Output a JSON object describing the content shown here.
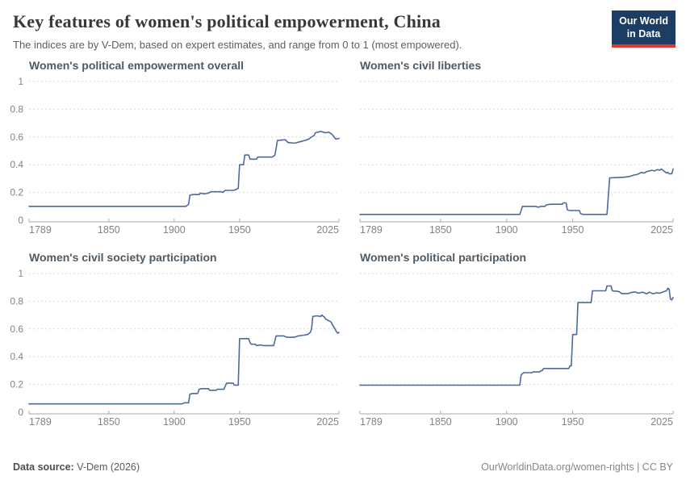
{
  "header": {
    "title": "Key features of women's political empowerment, China",
    "subtitle": "The indices are by V-Dem, based on expert estimates, and range from 0 to 1 (most empowered).",
    "logo": {
      "line1": "Our World",
      "line2": "in Data"
    }
  },
  "footer": {
    "source_label": "Data source:",
    "source_value": "V-Dem (2026)",
    "link": "OurWorldinData.org/women-rights",
    "separator": "|",
    "license": "CC BY"
  },
  "colors": {
    "line": "#4c6a9c",
    "grid": "#d9d9d9",
    "axis": "#a8a8a8",
    "tick_label": "#838383",
    "logo_bg": "#1d3d63",
    "logo_accent": "#dc3a2c"
  },
  "chart_data": [
    {
      "type": "line",
      "title": "Women's political empowerment overall",
      "entity": "China",
      "xlim": [
        1789,
        2026
      ],
      "ylim": [
        0,
        1
      ],
      "x_ticks": [
        1789,
        1850,
        1900,
        1950,
        2025
      ],
      "y_ticks": [
        0,
        0.2,
        0.4,
        0.6,
        0.8,
        1
      ],
      "grid": "horizontal-dashed",
      "show_y_labels": true,
      "points": [
        [
          1789,
          0.1
        ],
        [
          1909,
          0.1
        ],
        [
          1911,
          0.115
        ],
        [
          1912,
          0.18
        ],
        [
          1914,
          0.185
        ],
        [
          1919,
          0.185
        ],
        [
          1920,
          0.195
        ],
        [
          1923,
          0.19
        ],
        [
          1926,
          0.195
        ],
        [
          1928,
          0.205
        ],
        [
          1936,
          0.205
        ],
        [
          1937,
          0.2
        ],
        [
          1939,
          0.215
        ],
        [
          1945,
          0.215
        ],
        [
          1947,
          0.22
        ],
        [
          1949,
          0.23
        ],
        [
          1950,
          0.4
        ],
        [
          1953,
          0.4
        ],
        [
          1954,
          0.47
        ],
        [
          1957,
          0.47
        ],
        [
          1958,
          0.44
        ],
        [
          1963,
          0.44
        ],
        [
          1964,
          0.455
        ],
        [
          1975,
          0.455
        ],
        [
          1977,
          0.47
        ],
        [
          1978,
          0.52
        ],
        [
          1979,
          0.575
        ],
        [
          1985,
          0.58
        ],
        [
          1987,
          0.56
        ],
        [
          1992,
          0.555
        ],
        [
          1996,
          0.565
        ],
        [
          2000,
          0.575
        ],
        [
          2003,
          0.585
        ],
        [
          2005,
          0.6
        ],
        [
          2007,
          0.61
        ],
        [
          2008,
          0.63
        ],
        [
          2010,
          0.635
        ],
        [
          2012,
          0.64
        ],
        [
          2014,
          0.635
        ],
        [
          2016,
          0.63
        ],
        [
          2018,
          0.635
        ],
        [
          2020,
          0.625
        ],
        [
          2022,
          0.605
        ],
        [
          2023,
          0.59
        ],
        [
          2024,
          0.585
        ],
        [
          2026,
          0.59
        ]
      ]
    },
    {
      "type": "line",
      "title": "Women's civil liberties",
      "entity": "China",
      "xlim": [
        1789,
        2026
      ],
      "ylim": [
        0,
        1
      ],
      "x_ticks": [
        1789,
        1850,
        1900,
        1950,
        2025
      ],
      "y_ticks": [
        0,
        0.2,
        0.4,
        0.6,
        0.8,
        1
      ],
      "grid": "horizontal-dashed",
      "show_y_labels": false,
      "points": [
        [
          1789,
          0.042
        ],
        [
          1910,
          0.042
        ],
        [
          1912,
          0.1
        ],
        [
          1922,
          0.1
        ],
        [
          1924,
          0.093
        ],
        [
          1926,
          0.1
        ],
        [
          1929,
          0.1
        ],
        [
          1930,
          0.11
        ],
        [
          1933,
          0.115
        ],
        [
          1942,
          0.115
        ],
        [
          1943,
          0.125
        ],
        [
          1945,
          0.125
        ],
        [
          1946,
          0.075
        ],
        [
          1948,
          0.07
        ],
        [
          1955,
          0.07
        ],
        [
          1956,
          0.047
        ],
        [
          1958,
          0.042
        ],
        [
          1976,
          0.042
        ],
        [
          1978,
          0.305
        ],
        [
          1989,
          0.31
        ],
        [
          1993,
          0.315
        ],
        [
          1996,
          0.325
        ],
        [
          1999,
          0.33
        ],
        [
          2002,
          0.345
        ],
        [
          2004,
          0.34
        ],
        [
          2006,
          0.35
        ],
        [
          2008,
          0.355
        ],
        [
          2010,
          0.36
        ],
        [
          2012,
          0.355
        ],
        [
          2014,
          0.365
        ],
        [
          2016,
          0.36
        ],
        [
          2017,
          0.37
        ],
        [
          2019,
          0.355
        ],
        [
          2021,
          0.34
        ],
        [
          2022,
          0.345
        ],
        [
          2023,
          0.335
        ],
        [
          2025,
          0.335
        ],
        [
          2026,
          0.37
        ]
      ]
    },
    {
      "type": "line",
      "title": "Women's civil society participation",
      "entity": "China",
      "xlim": [
        1789,
        2026
      ],
      "ylim": [
        0,
        1
      ],
      "x_ticks": [
        1789,
        1850,
        1900,
        1950,
        2025
      ],
      "y_ticks": [
        0,
        0.2,
        0.4,
        0.6,
        0.8,
        1
      ],
      "grid": "horizontal-dashed",
      "show_y_labels": true,
      "points": [
        [
          1789,
          0.06
        ],
        [
          1906,
          0.06
        ],
        [
          1908,
          0.068
        ],
        [
          1911,
          0.068
        ],
        [
          1912,
          0.13
        ],
        [
          1914,
          0.135
        ],
        [
          1918,
          0.135
        ],
        [
          1919,
          0.165
        ],
        [
          1921,
          0.17
        ],
        [
          1926,
          0.17
        ],
        [
          1927,
          0.158
        ],
        [
          1932,
          0.158
        ],
        [
          1933,
          0.165
        ],
        [
          1938,
          0.165
        ],
        [
          1940,
          0.21
        ],
        [
          1945,
          0.21
        ],
        [
          1946,
          0.195
        ],
        [
          1949,
          0.195
        ],
        [
          1950,
          0.53
        ],
        [
          1957,
          0.53
        ],
        [
          1958,
          0.5
        ],
        [
          1959,
          0.49
        ],
        [
          1962,
          0.49
        ],
        [
          1963,
          0.48
        ],
        [
          1966,
          0.485
        ],
        [
          1968,
          0.48
        ],
        [
          1976,
          0.48
        ],
        [
          1977,
          0.515
        ],
        [
          1978,
          0.55
        ],
        [
          1984,
          0.55
        ],
        [
          1986,
          0.54
        ],
        [
          1992,
          0.54
        ],
        [
          1995,
          0.55
        ],
        [
          1999,
          0.555
        ],
        [
          2002,
          0.56
        ],
        [
          2004,
          0.575
        ],
        [
          2005,
          0.6
        ],
        [
          2006,
          0.69
        ],
        [
          2009,
          0.695
        ],
        [
          2012,
          0.69
        ],
        [
          2013,
          0.7
        ],
        [
          2014,
          0.69
        ],
        [
          2015,
          0.685
        ],
        [
          2016,
          0.67
        ],
        [
          2017,
          0.665
        ],
        [
          2019,
          0.655
        ],
        [
          2020,
          0.65
        ],
        [
          2021,
          0.63
        ],
        [
          2022,
          0.615
        ],
        [
          2023,
          0.6
        ],
        [
          2024,
          0.58
        ],
        [
          2025,
          0.57
        ],
        [
          2026,
          0.575
        ]
      ]
    },
    {
      "type": "line",
      "title": "Women's political participation",
      "entity": "China",
      "xlim": [
        1789,
        2026
      ],
      "ylim": [
        0,
        1
      ],
      "x_ticks": [
        1789,
        1850,
        1900,
        1950,
        2025
      ],
      "y_ticks": [
        0,
        0.2,
        0.4,
        0.6,
        0.8,
        1
      ],
      "grid": "horizontal-dashed",
      "show_y_labels": false,
      "points": [
        [
          1789,
          0.195
        ],
        [
          1910,
          0.195
        ],
        [
          1911,
          0.27
        ],
        [
          1913,
          0.285
        ],
        [
          1919,
          0.285
        ],
        [
          1920,
          0.29
        ],
        [
          1925,
          0.29
        ],
        [
          1926,
          0.3
        ],
        [
          1927,
          0.3
        ],
        [
          1928,
          0.315
        ],
        [
          1947,
          0.315
        ],
        [
          1948,
          0.335
        ],
        [
          1949,
          0.335
        ],
        [
          1950,
          0.56
        ],
        [
          1953,
          0.56
        ],
        [
          1954,
          0.79
        ],
        [
          1964,
          0.79
        ],
        [
          1965,
          0.875
        ],
        [
          1975,
          0.875
        ],
        [
          1976,
          0.91
        ],
        [
          1979,
          0.91
        ],
        [
          1980,
          0.875
        ],
        [
          1985,
          0.87
        ],
        [
          1987,
          0.855
        ],
        [
          1992,
          0.855
        ],
        [
          1994,
          0.862
        ],
        [
          1997,
          0.867
        ],
        [
          2000,
          0.858
        ],
        [
          2003,
          0.865
        ],
        [
          2006,
          0.853
        ],
        [
          2008,
          0.865
        ],
        [
          2011,
          0.853
        ],
        [
          2013,
          0.86
        ],
        [
          2016,
          0.858
        ],
        [
          2018,
          0.865
        ],
        [
          2020,
          0.872
        ],
        [
          2021,
          0.875
        ],
        [
          2022,
          0.893
        ],
        [
          2023,
          0.888
        ],
        [
          2024,
          0.815
        ],
        [
          2025,
          0.81
        ],
        [
          2026,
          0.826
        ]
      ]
    }
  ]
}
